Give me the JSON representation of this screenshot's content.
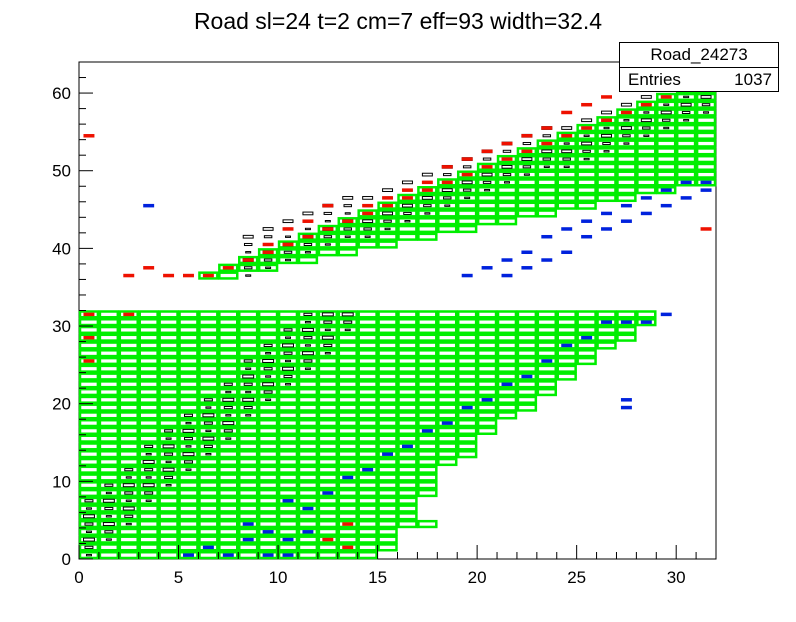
{
  "title": "Road sl=24 t=2 cm=7 eff=93 width=32.4",
  "stats": {
    "name": "Road_24273",
    "entries_label": "Entries",
    "entries_value": "1037"
  },
  "colors": {
    "road_outline": "#00ee00",
    "hit_red": "#ee1100",
    "hit_blue": "#0022dd",
    "box_black": "#000000"
  },
  "chart_data": {
    "type": "heatmap",
    "title": "Road sl=24 t=2 cm=7 eff=93 width=32.4",
    "xlabel": "",
    "ylabel": "",
    "xlim": [
      0,
      32
    ],
    "ylim": [
      0,
      64
    ],
    "x_ticks": [
      0,
      5,
      10,
      15,
      20,
      25,
      30
    ],
    "y_ticks": [
      0,
      10,
      20,
      30,
      40,
      50,
      60
    ],
    "legend": "top-right stats box",
    "road_boxes_lower": [
      {
        "x0": 0,
        "x1": 15,
        "y0": 0,
        "y1": 1
      },
      {
        "x0": 0,
        "x1": 16,
        "y0": 1,
        "y1": 2
      },
      {
        "x0": 0,
        "x1": 16,
        "y0": 2,
        "y1": 3
      },
      {
        "x0": 0,
        "x1": 16,
        "y0": 3,
        "y1": 4
      },
      {
        "x0": 0,
        "x1": 18,
        "y0": 4,
        "y1": 5
      },
      {
        "x0": 0,
        "x1": 17,
        "y0": 5,
        "y1": 6
      },
      {
        "x0": 0,
        "x1": 17,
        "y0": 6,
        "y1": 7
      },
      {
        "x0": 0,
        "x1": 17,
        "y0": 7,
        "y1": 8
      },
      {
        "x0": 0,
        "x1": 18,
        "y0": 8,
        "y1": 9
      },
      {
        "x0": 0,
        "x1": 18,
        "y0": 9,
        "y1": 10
      },
      {
        "x0": 0,
        "x1": 18,
        "y0": 10,
        "y1": 11
      },
      {
        "x0": 0,
        "x1": 18,
        "y0": 11,
        "y1": 12
      },
      {
        "x0": 0,
        "x1": 19,
        "y0": 12,
        "y1": 13
      },
      {
        "x0": 0,
        "x1": 20,
        "y0": 13,
        "y1": 14
      },
      {
        "x0": 0,
        "x1": 20,
        "y0": 14,
        "y1": 15
      },
      {
        "x0": 0,
        "x1": 20,
        "y0": 15,
        "y1": 16
      },
      {
        "x0": 0,
        "x1": 21,
        "y0": 16,
        "y1": 17
      },
      {
        "x0": 0,
        "x1": 21,
        "y0": 17,
        "y1": 18
      },
      {
        "x0": 0,
        "x1": 22,
        "y0": 18,
        "y1": 19
      },
      {
        "x0": 0,
        "x1": 23,
        "y0": 19,
        "y1": 20
      },
      {
        "x0": 0,
        "x1": 23,
        "y0": 20,
        "y1": 21
      },
      {
        "x0": 0,
        "x1": 24,
        "y0": 21,
        "y1": 22
      },
      {
        "x0": 0,
        "x1": 24,
        "y0": 22,
        "y1": 23
      },
      {
        "x0": 0,
        "x1": 25,
        "y0": 23,
        "y1": 24
      },
      {
        "x0": 0,
        "x1": 25,
        "y0": 24,
        "y1": 25
      },
      {
        "x0": 0,
        "x1": 26,
        "y0": 25,
        "y1": 26
      },
      {
        "x0": 0,
        "x1": 26,
        "y0": 26,
        "y1": 27
      },
      {
        "x0": 0,
        "x1": 27,
        "y0": 27,
        "y1": 28
      },
      {
        "x0": 0,
        "x1": 28,
        "y0": 28,
        "y1": 29
      },
      {
        "x0": 0,
        "x1": 28,
        "y0": 29,
        "y1": 30
      },
      {
        "x0": 0,
        "x1": 29,
        "y0": 30,
        "y1": 31
      },
      {
        "x0": 0,
        "x1": 29,
        "y0": 31,
        "y1": 32
      }
    ],
    "road_boxes_upper": [
      {
        "x0": 6,
        "x1": 8,
        "y0": 36,
        "y1": 37
      },
      {
        "x0": 7,
        "x1": 10,
        "y0": 37,
        "y1": 38
      },
      {
        "x0": 8,
        "x1": 12,
        "y0": 38,
        "y1": 39
      },
      {
        "x0": 9,
        "x1": 14,
        "y0": 39,
        "y1": 40
      },
      {
        "x0": 10,
        "x1": 16,
        "y0": 40,
        "y1": 41
      },
      {
        "x0": 11,
        "x1": 18,
        "y0": 41,
        "y1": 42
      },
      {
        "x0": 12,
        "x1": 20,
        "y0": 42,
        "y1": 43
      },
      {
        "x0": 13,
        "x1": 22,
        "y0": 43,
        "y1": 44
      },
      {
        "x0": 14,
        "x1": 24,
        "y0": 44,
        "y1": 45
      },
      {
        "x0": 15,
        "x1": 26,
        "y0": 45,
        "y1": 46
      },
      {
        "x0": 16,
        "x1": 28,
        "y0": 46,
        "y1": 47
      },
      {
        "x0": 17,
        "x1": 30,
        "y0": 47,
        "y1": 48
      },
      {
        "x0": 18,
        "x1": 32,
        "y0": 48,
        "y1": 49
      },
      {
        "x0": 19,
        "x1": 32,
        "y0": 49,
        "y1": 50
      },
      {
        "x0": 20,
        "x1": 32,
        "y0": 50,
        "y1": 51
      },
      {
        "x0": 21,
        "x1": 32,
        "y0": 51,
        "y1": 52
      },
      {
        "x0": 22,
        "x1": 32,
        "y0": 52,
        "y1": 53
      },
      {
        "x0": 23,
        "x1": 32,
        "y0": 53,
        "y1": 54
      },
      {
        "x0": 24,
        "x1": 32,
        "y0": 54,
        "y1": 55
      },
      {
        "x0": 25,
        "x1": 32,
        "y0": 55,
        "y1": 56
      },
      {
        "x0": 26,
        "x1": 32,
        "y0": 56,
        "y1": 57
      },
      {
        "x0": 27,
        "x1": 32,
        "y0": 57,
        "y1": 58
      },
      {
        "x0": 28,
        "x1": 32,
        "y0": 58,
        "y1": 59
      },
      {
        "x0": 29,
        "x1": 32,
        "y0": 59,
        "y1": 60
      },
      {
        "x0": 30,
        "x1": 32,
        "y0": 60,
        "y1": 61
      }
    ],
    "red_hits": [
      [
        0.5,
        54.5
      ],
      [
        0.5,
        31.5
      ],
      [
        0.5,
        28.5
      ],
      [
        0.5,
        25.5
      ],
      [
        2.5,
        36.5
      ],
      [
        3.5,
        37.5
      ],
      [
        4.5,
        36.5
      ],
      [
        5.5,
        36.5
      ],
      [
        6.5,
        36.5
      ],
      [
        7.5,
        37.5
      ],
      [
        8.5,
        38.5
      ],
      [
        9.5,
        39.5
      ],
      [
        10.5,
        40.5
      ],
      [
        11.5,
        41.5
      ],
      [
        12.5,
        42.5
      ],
      [
        13.5,
        43.5
      ],
      [
        14.5,
        44.5
      ],
      [
        15.5,
        45.5
      ],
      [
        16.5,
        46.5
      ],
      [
        17.5,
        47.5
      ],
      [
        18.5,
        48.5
      ],
      [
        19.5,
        49.5
      ],
      [
        20.5,
        50.5
      ],
      [
        21.5,
        51.5
      ],
      [
        22.5,
        52.5
      ],
      [
        23.5,
        53.5
      ],
      [
        24.5,
        54.5
      ],
      [
        25.5,
        55.5
      ],
      [
        26.5,
        56.5
      ],
      [
        27.5,
        57.5
      ],
      [
        28.5,
        58.5
      ],
      [
        29.5,
        59.5
      ],
      [
        30.5,
        60.5
      ],
      [
        31.5,
        61.5
      ],
      [
        12.5,
        2.5
      ],
      [
        13.5,
        4.5
      ],
      [
        14.5,
        45.5
      ],
      [
        15.5,
        46.5
      ],
      [
        16.5,
        47.5
      ],
      [
        17.5,
        48.5
      ],
      [
        18.5,
        50.5
      ],
      [
        19.5,
        51.5
      ],
      [
        20.5,
        52.5
      ],
      [
        21.5,
        53.5
      ],
      [
        22.5,
        54.5
      ],
      [
        23.5,
        55.5
      ],
      [
        24.5,
        57.5
      ],
      [
        25.5,
        58.5
      ],
      [
        26.5,
        59.5
      ],
      [
        27.5,
        60.5
      ],
      [
        28.5,
        61.5
      ],
      [
        29.5,
        62.5
      ],
      [
        9.5,
        40.5
      ],
      [
        10.5,
        42.5
      ],
      [
        11.5,
        43.5
      ],
      [
        12.5,
        45.5
      ],
      [
        31.5,
        42.5
      ],
      [
        2.5,
        31.5
      ],
      [
        13.5,
        1.5
      ]
    ],
    "blue_hits": [
      [
        3.5,
        45.5
      ],
      [
        5.5,
        0.5
      ],
      [
        6.5,
        1.5
      ],
      [
        7.5,
        0.5
      ],
      [
        8.5,
        2.5
      ],
      [
        8.5,
        4.5
      ],
      [
        9.5,
        0.5
      ],
      [
        9.5,
        3.5
      ],
      [
        10.5,
        0.5
      ],
      [
        10.5,
        2.5
      ],
      [
        10.5,
        7.5
      ],
      [
        11.5,
        3.5
      ],
      [
        11.5,
        6.5
      ],
      [
        12.5,
        8.5
      ],
      [
        13.5,
        10.5
      ],
      [
        14.5,
        11.5
      ],
      [
        15.5,
        13.5
      ],
      [
        16.5,
        14.5
      ],
      [
        17.5,
        16.5
      ],
      [
        18.5,
        17.5
      ],
      [
        19.5,
        19.5
      ],
      [
        20.5,
        20.5
      ],
      [
        21.5,
        22.5
      ],
      [
        22.5,
        23.5
      ],
      [
        23.5,
        25.5
      ],
      [
        24.5,
        27.5
      ],
      [
        25.5,
        28.5
      ],
      [
        26.5,
        30.5
      ],
      [
        27.5,
        30.5
      ],
      [
        28.5,
        30.5
      ],
      [
        29.5,
        31.5
      ],
      [
        27.5,
        19.5
      ],
      [
        27.5,
        20.5
      ],
      [
        21.5,
        36.5
      ],
      [
        22.5,
        37.5
      ],
      [
        23.5,
        38.5
      ],
      [
        24.5,
        39.5
      ],
      [
        25.5,
        41.5
      ],
      [
        26.5,
        42.5
      ],
      [
        27.5,
        43.5
      ],
      [
        28.5,
        44.5
      ],
      [
        29.5,
        45.5
      ],
      [
        30.5,
        46.5
      ],
      [
        31.5,
        47.5
      ],
      [
        31.5,
        48.5
      ],
      [
        30.5,
        48.5
      ],
      [
        29.5,
        47.5
      ],
      [
        28.5,
        46.5
      ],
      [
        27.5,
        45.5
      ],
      [
        26.5,
        44.5
      ],
      [
        25.5,
        43.5
      ],
      [
        24.5,
        42.5
      ],
      [
        23.5,
        41.5
      ],
      [
        22.5,
        39.5
      ],
      [
        21.5,
        38.5
      ],
      [
        20.5,
        37.5
      ],
      [
        19.5,
        36.5
      ]
    ]
  }
}
